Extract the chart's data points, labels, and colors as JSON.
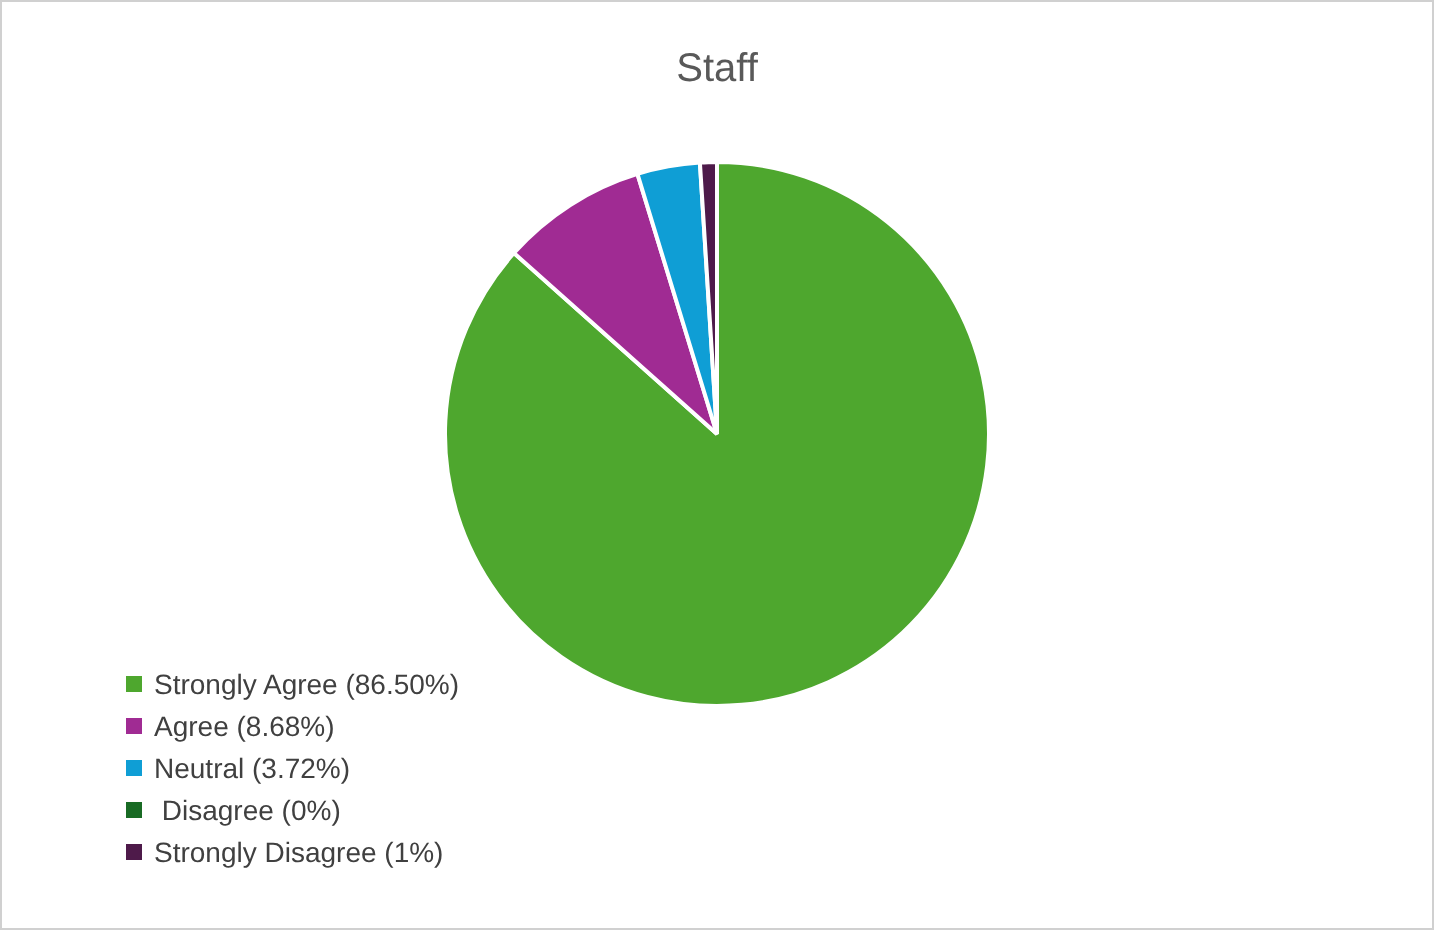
{
  "chart_data": {
    "type": "pie",
    "title": "Staff",
    "categories": [
      "Strongly Agree (86.50%)",
      "Agree (8.68%)",
      "Neutral (3.72%)",
      " Disagree (0%)",
      "Strongly Disagree (1%)"
    ],
    "values": [
      86.5,
      8.68,
      3.72,
      0,
      1
    ],
    "colors": [
      "#4ea72e",
      "#a02b93",
      "#0f9ed5",
      "#196b24",
      "#4e1a4a"
    ],
    "legend": "bottom left"
  }
}
